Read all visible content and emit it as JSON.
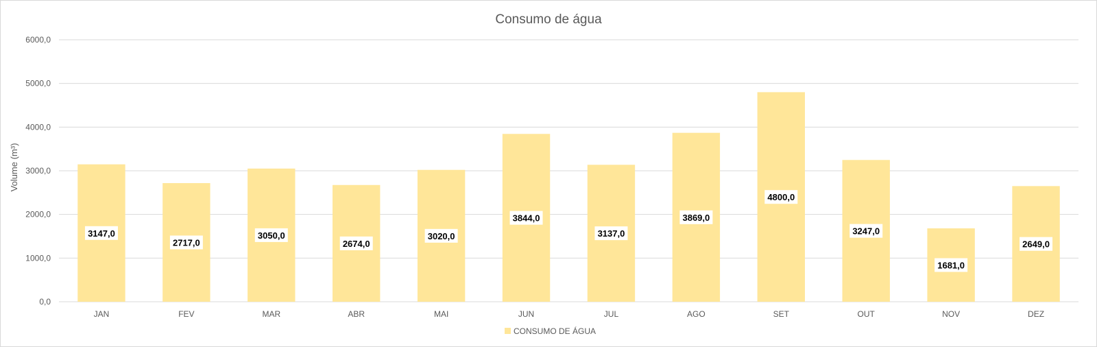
{
  "colors": {
    "bar": "#FFE699",
    "gridline": "#d9d9d9",
    "axis_text": "#595959",
    "data_label_bg": "#ffffff",
    "data_label_text": "#000000"
  },
  "chart_data": {
    "type": "bar",
    "title": "Consumo de água",
    "xlabel": "",
    "ylabel": "Volume (m³)",
    "categories": [
      "JAN",
      "FEV",
      "MAR",
      "ABR",
      "MAI",
      "JUN",
      "JUL",
      "AGO",
      "SET",
      "OUT",
      "NOV",
      "DEZ"
    ],
    "series": [
      {
        "name": "CONSUMO DE ÁGUA",
        "values": [
          3147.0,
          2717.0,
          3050.0,
          2674.0,
          3020.0,
          3844.0,
          3137.0,
          3869.0,
          4800.0,
          3247.0,
          1681.0,
          2649.0
        ],
        "labels": [
          "3147,0",
          "2717,0",
          "3050,0",
          "2674,0",
          "3020,0",
          "3844,0",
          "3137,0",
          "3869,0",
          "4800,0",
          "3247,0",
          "1681,0",
          "2649,0"
        ]
      }
    ],
    "ylim": [
      0,
      6000
    ],
    "yticks": [
      0,
      1000,
      2000,
      3000,
      4000,
      5000,
      6000
    ],
    "ytick_labels": [
      "0,0",
      "1000,0",
      "2000,0",
      "3000,0",
      "4000,0",
      "5000,0",
      "6000,0"
    ],
    "grid": true,
    "legend": "bottom",
    "data_labels": "center"
  }
}
